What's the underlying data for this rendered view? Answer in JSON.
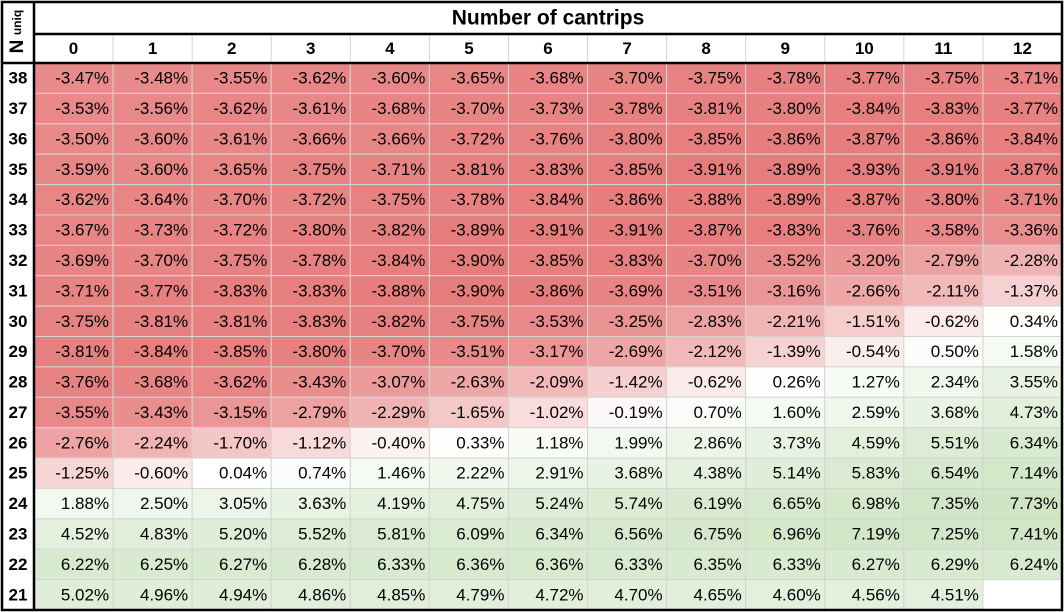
{
  "chart_data": {
    "type": "heatmap",
    "title": "Number of cantrips",
    "ylabel_main": "N",
    "ylabel_sub": "uniq",
    "columns": [
      "0",
      "1",
      "2",
      "3",
      "4",
      "5",
      "6",
      "7",
      "8",
      "9",
      "10",
      "11",
      "12"
    ],
    "rows": [
      "38",
      "37",
      "36",
      "35",
      "34",
      "33",
      "32",
      "31",
      "30",
      "29",
      "28",
      "27",
      "26",
      "25",
      "24",
      "23",
      "22",
      "21"
    ],
    "values": [
      [
        -3.47,
        -3.48,
        -3.55,
        -3.62,
        -3.6,
        -3.65,
        -3.68,
        -3.7,
        -3.75,
        -3.78,
        -3.77,
        -3.75,
        -3.71
      ],
      [
        -3.53,
        -3.56,
        -3.62,
        -3.61,
        -3.68,
        -3.7,
        -3.73,
        -3.78,
        -3.81,
        -3.8,
        -3.84,
        -3.83,
        -3.77
      ],
      [
        -3.5,
        -3.6,
        -3.61,
        -3.66,
        -3.66,
        -3.72,
        -3.76,
        -3.8,
        -3.85,
        -3.86,
        -3.87,
        -3.86,
        -3.84
      ],
      [
        -3.59,
        -3.6,
        -3.65,
        -3.75,
        -3.71,
        -3.81,
        -3.83,
        -3.85,
        -3.91,
        -3.89,
        -3.93,
        -3.91,
        -3.87
      ],
      [
        -3.62,
        -3.64,
        -3.7,
        -3.72,
        -3.75,
        -3.78,
        -3.84,
        -3.86,
        -3.88,
        -3.89,
        -3.87,
        -3.8,
        -3.71
      ],
      [
        -3.67,
        -3.73,
        -3.72,
        -3.8,
        -3.82,
        -3.89,
        -3.91,
        -3.91,
        -3.87,
        -3.83,
        -3.76,
        -3.58,
        -3.36
      ],
      [
        -3.69,
        -3.7,
        -3.75,
        -3.78,
        -3.84,
        -3.9,
        -3.85,
        -3.83,
        -3.7,
        -3.52,
        -3.2,
        -2.79,
        -2.28
      ],
      [
        -3.71,
        -3.77,
        -3.83,
        -3.83,
        -3.88,
        -3.9,
        -3.86,
        -3.69,
        -3.51,
        -3.16,
        -2.66,
        -2.11,
        -1.37
      ],
      [
        -3.75,
        -3.81,
        -3.81,
        -3.83,
        -3.82,
        -3.75,
        -3.53,
        -3.25,
        -2.83,
        -2.21,
        -1.51,
        -0.62,
        0.34
      ],
      [
        -3.81,
        -3.84,
        -3.85,
        -3.8,
        -3.7,
        -3.51,
        -3.17,
        -2.69,
        -2.12,
        -1.39,
        -0.54,
        0.5,
        1.58
      ],
      [
        -3.76,
        -3.68,
        -3.62,
        -3.43,
        -3.07,
        -2.63,
        -2.09,
        -1.42,
        -0.62,
        0.26,
        1.27,
        2.34,
        3.55
      ],
      [
        -3.55,
        -3.43,
        -3.15,
        -2.79,
        -2.29,
        -1.65,
        -1.02,
        -0.19,
        0.7,
        1.6,
        2.59,
        3.68,
        4.73
      ],
      [
        -2.76,
        -2.24,
        -1.7,
        -1.12,
        -0.4,
        0.33,
        1.18,
        1.99,
        2.86,
        3.73,
        4.59,
        5.51,
        6.34
      ],
      [
        -1.25,
        -0.6,
        0.04,
        0.74,
        1.46,
        2.22,
        2.91,
        3.68,
        4.38,
        5.14,
        5.83,
        6.54,
        7.14
      ],
      [
        1.88,
        2.5,
        3.05,
        3.63,
        4.19,
        4.75,
        5.24,
        5.74,
        6.19,
        6.65,
        6.98,
        7.35,
        7.73
      ],
      [
        4.52,
        4.83,
        5.2,
        5.52,
        5.81,
        6.09,
        6.34,
        6.56,
        6.75,
        6.96,
        7.19,
        7.25,
        7.41
      ],
      [
        6.22,
        6.25,
        6.27,
        6.28,
        6.33,
        6.36,
        6.36,
        6.33,
        6.35,
        6.33,
        6.27,
        6.29,
        6.24
      ],
      [
        5.02,
        4.96,
        4.94,
        4.86,
        4.85,
        4.79,
        4.72,
        4.7,
        4.65,
        4.6,
        4.56,
        4.51,
        null
      ]
    ],
    "value_suffix": "%",
    "color_scale": {
      "negative": "#e67c7c",
      "zero": "#ffffff",
      "positive": "#cfe5c4"
    },
    "grid": true
  }
}
